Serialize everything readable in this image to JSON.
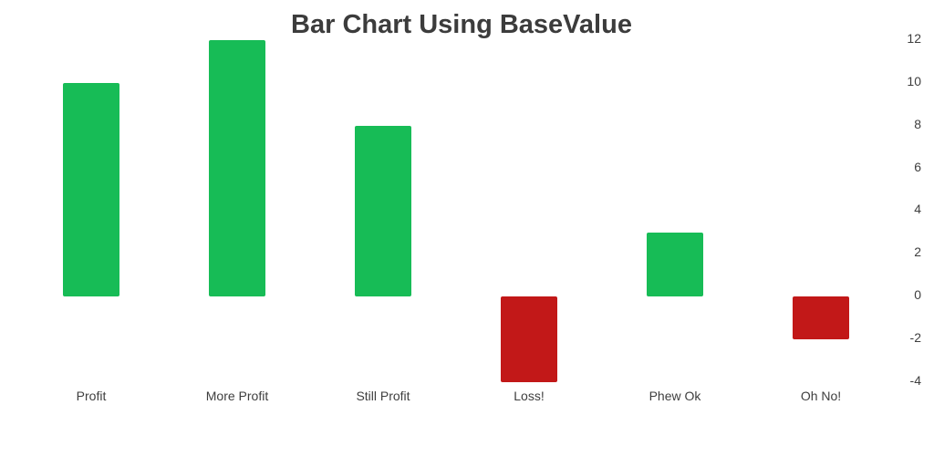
{
  "chart_data": {
    "type": "bar",
    "title": "Bar Chart Using BaseValue",
    "categories": [
      "Profit",
      "More Profit",
      "Still Profit",
      "Loss!",
      "Phew Ok",
      "Oh No!"
    ],
    "values": [
      10,
      12,
      8,
      -4,
      3,
      -2
    ],
    "base_value": 0,
    "xlabel": "",
    "ylabel": "",
    "y_ticks": [
      12,
      10,
      8,
      6,
      4,
      2,
      0,
      -2,
      -4
    ],
    "ylim": [
      -4.5,
      12.5
    ],
    "y_axis_position": "right",
    "grid": false,
    "legend": "none",
    "colors": {
      "positive_bar": "#17BC56",
      "negative_bar": "#C21818",
      "title_text": "#3C3C3C",
      "axis_text": "#3E3E3E",
      "background": "#FFFFFF"
    }
  }
}
